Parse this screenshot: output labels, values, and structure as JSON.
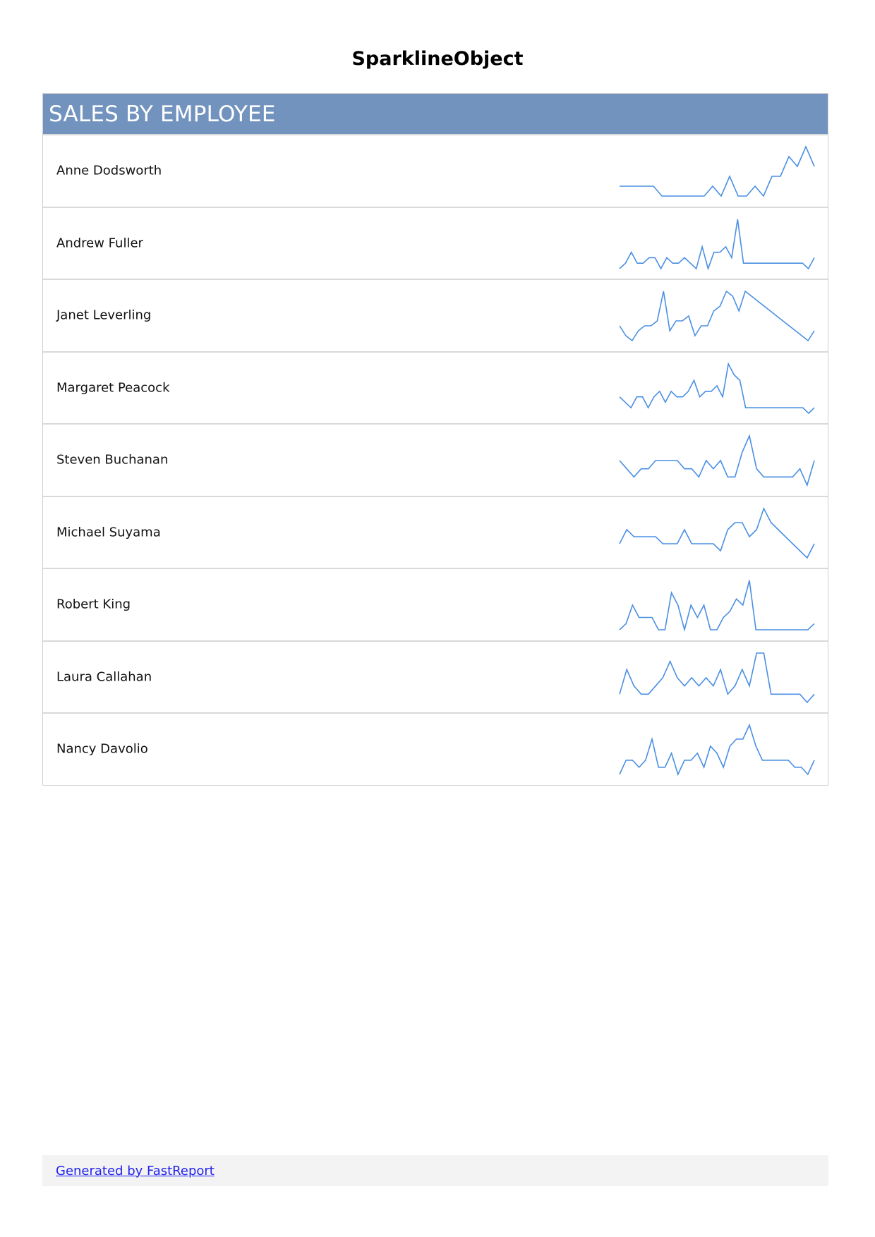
{
  "report": {
    "title": "SparklineObject",
    "header": "SALES BY EMPLOYEE",
    "header_bg_color": "#7293be",
    "sparkline_color": "#4a8fe3"
  },
  "employees": [
    {
      "name": "Anne Dodsworth",
      "sales": [
        5,
        5,
        5,
        5,
        5,
        4,
        4,
        4,
        4,
        4,
        4,
        5,
        4,
        6,
        4,
        4,
        5,
        4,
        6,
        6,
        8,
        7,
        9,
        7
      ]
    },
    {
      "name": "Andrew Fuller",
      "sales": [
        3,
        4,
        6,
        4,
        4,
        5,
        5,
        3,
        5,
        4,
        4,
        5,
        4,
        3,
        7,
        3,
        6,
        6,
        7,
        5,
        12,
        4,
        4,
        4,
        4,
        4,
        4,
        4,
        4,
        4,
        4,
        4,
        3,
        5
      ]
    },
    {
      "name": "Janet Leverling",
      "sales": [
        5,
        3,
        2,
        4,
        5,
        5,
        6,
        12,
        4,
        6,
        6,
        7,
        3,
        5,
        5,
        8,
        9,
        12,
        11,
        8,
        12,
        11,
        10,
        9,
        8,
        7,
        6,
        5,
        4,
        3,
        2,
        4
      ]
    },
    {
      "name": "Margaret Peacock",
      "sales": [
        5,
        4,
        3,
        5,
        5,
        3,
        5,
        6,
        4,
        6,
        5,
        5,
        6,
        8,
        5,
        6,
        6,
        7,
        5,
        11,
        9,
        8,
        3,
        3,
        3,
        3,
        3,
        3,
        3,
        3,
        3,
        3,
        3,
        2,
        3
      ]
    },
    {
      "name": "Steven Buchanan",
      "sales": [
        5,
        4,
        3,
        4,
        4,
        5,
        5,
        5,
        5,
        4,
        4,
        3,
        5,
        4,
        5,
        3,
        3,
        6,
        8,
        4,
        3,
        3,
        3,
        3,
        3,
        4,
        2,
        5
      ]
    },
    {
      "name": "Michael Suyama",
      "sales": [
        3,
        5,
        4,
        4,
        4,
        4,
        3,
        3,
        3,
        5,
        3,
        3,
        3,
        3,
        2,
        5,
        6,
        6,
        4,
        5,
        8,
        6,
        5,
        4,
        3,
        2,
        1,
        3
      ]
    },
    {
      "name": "Robert King",
      "sales": [
        3,
        4,
        7,
        5,
        5,
        5,
        3,
        3,
        9,
        7,
        3,
        7,
        5,
        7,
        3,
        3,
        5,
        6,
        8,
        7,
        11,
        3,
        3,
        3,
        3,
        3,
        3,
        3,
        3,
        3,
        4
      ]
    },
    {
      "name": "Laura Callahan",
      "sales": [
        3,
        6,
        4,
        3,
        3,
        4,
        5,
        7,
        5,
        4,
        5,
        4,
        5,
        4,
        6,
        3,
        4,
        6,
        4,
        8,
        8,
        3,
        3,
        3,
        3,
        3,
        2,
        3
      ]
    },
    {
      "name": "Nancy Davolio",
      "sales": [
        2,
        4,
        4,
        3,
        4,
        7,
        3,
        3,
        5,
        2,
        4,
        4,
        5,
        3,
        6,
        5,
        3,
        6,
        7,
        7,
        9,
        6,
        4,
        4,
        4,
        4,
        4,
        3,
        3,
        2,
        4
      ]
    }
  ],
  "footer": {
    "link_text": "Generated by FastReport"
  }
}
